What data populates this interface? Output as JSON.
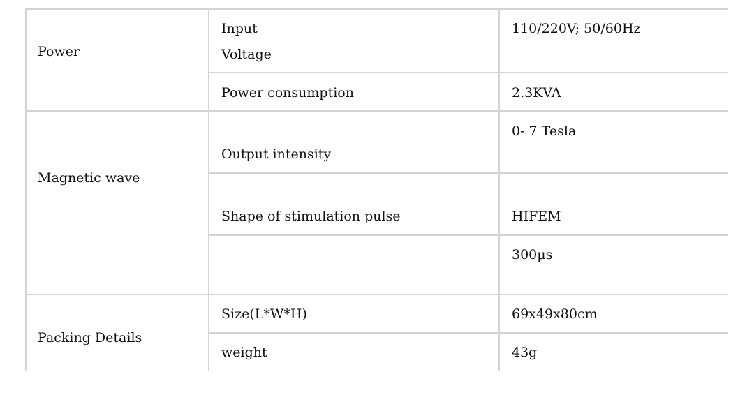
{
  "table": {
    "groups": [
      {
        "label": "Power",
        "rows": [
          {
            "param_line1": "Input",
            "param_line2": "Voltage",
            "value": "110/220V; 50/60Hz"
          },
          {
            "param": "Power consumption",
            "value": "2.3KVA"
          }
        ]
      },
      {
        "label": "Magnetic wave",
        "rows": [
          {
            "param": "Output intensity",
            "value": "0- 7 Tesla"
          },
          {
            "param": "Shape of stimulation pulse",
            "value": "HIFEM"
          },
          {
            "param": "",
            "value": "300μs"
          }
        ]
      },
      {
        "label": "Packing Details",
        "rows": [
          {
            "param": "Size(L*W*H)",
            "value": "69x49x80cm"
          },
          {
            "param": "weight",
            "value": "43g"
          }
        ]
      }
    ]
  }
}
